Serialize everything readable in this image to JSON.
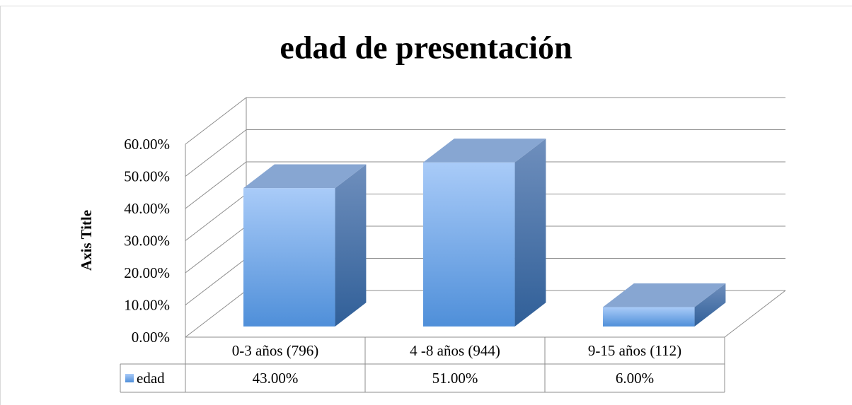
{
  "chart_data": {
    "type": "bar3d",
    "title": "edad de presentación",
    "y_axis_label": "Axis Title",
    "categories": [
      "0-3 años (796)",
      "4 -8 años (944)",
      "9-15 años (112)"
    ],
    "series": [
      {
        "name": "edad",
        "color": "#4f8fd9",
        "values": [
          43,
          51,
          6
        ],
        "value_labels": [
          "43.00%",
          "51.00%",
          "6.00%"
        ]
      }
    ],
    "ylim": [
      0,
      60
    ],
    "yticks": [
      {
        "value": 0,
        "label": "0.00%"
      },
      {
        "value": 10,
        "label": "10.00%"
      },
      {
        "value": 20,
        "label": "20.00%"
      },
      {
        "value": 30,
        "label": "30.00%"
      },
      {
        "value": 40,
        "label": "40.00%"
      },
      {
        "value": 50,
        "label": "50.00%"
      },
      {
        "value": 60,
        "label": "60.00%"
      }
    ],
    "grid": true,
    "data_table": true
  }
}
